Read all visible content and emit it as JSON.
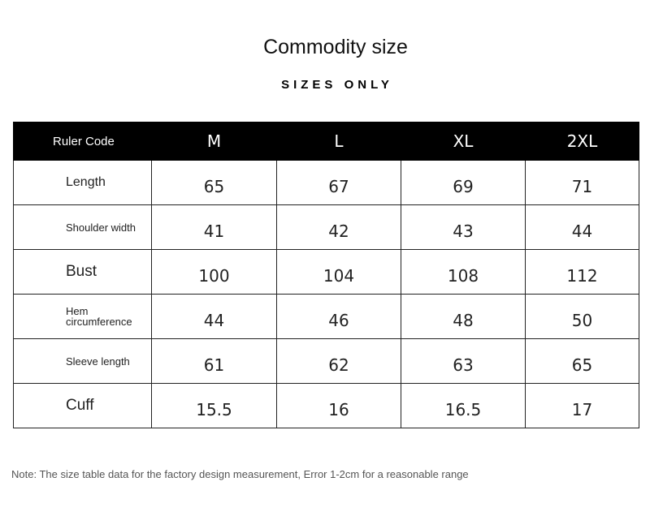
{
  "title": "Commodity size",
  "subtitle": "SIZES ONLY",
  "table": {
    "header_label": "Ruler Code",
    "sizes": [
      "M",
      "L",
      "XL",
      "2XL"
    ],
    "rows": [
      {
        "label": "Length",
        "values": [
          "65",
          "67",
          "69",
          "71"
        ]
      },
      {
        "label": "Shoulder width",
        "values": [
          "41",
          "42",
          "43",
          "44"
        ]
      },
      {
        "label": "Bust",
        "values": [
          "100",
          "104",
          "108",
          "112"
        ]
      },
      {
        "label": "Hem circumference",
        "values": [
          "44",
          "46",
          "48",
          "50"
        ]
      },
      {
        "label": "Sleeve length",
        "values": [
          "61",
          "62",
          "63",
          "65"
        ]
      },
      {
        "label": "Cuff",
        "values": [
          "15.5",
          "16",
          "16.5",
          "17"
        ]
      }
    ]
  },
  "note": "Note: The size table data for the factory design measurement, Error 1-2cm for a reasonable range"
}
